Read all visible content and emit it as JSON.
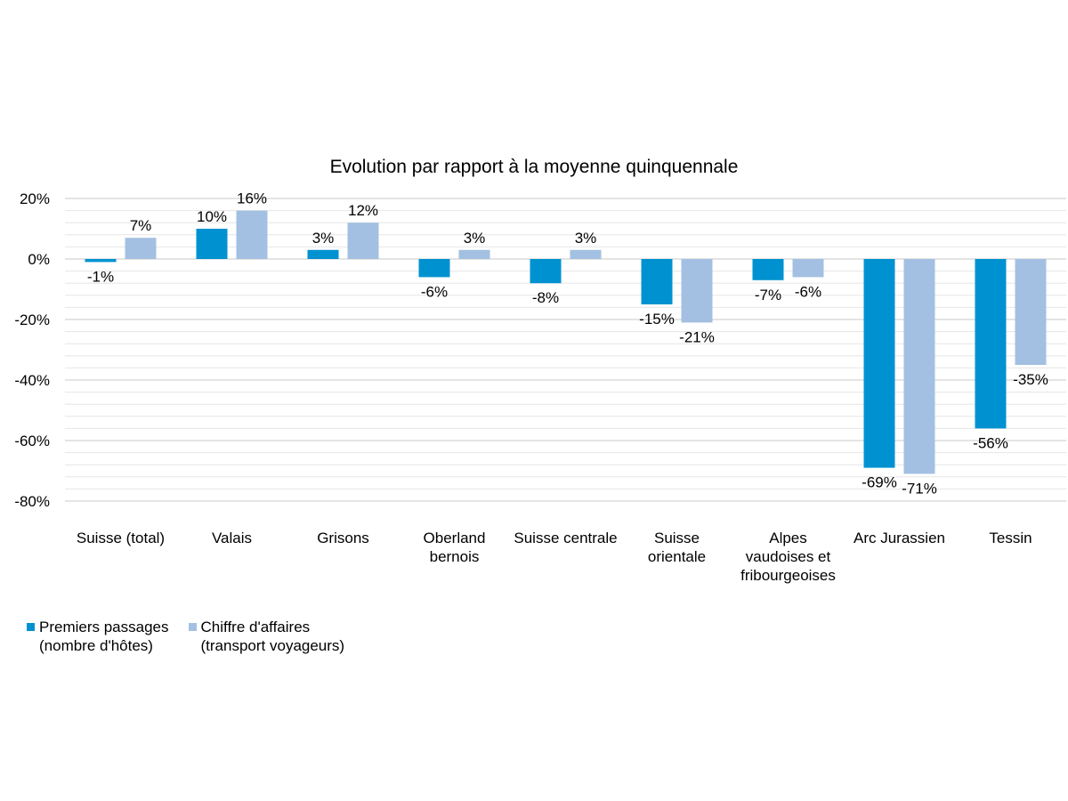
{
  "chart_data": {
    "type": "bar",
    "title": "Evolution par rapport à la moyenne quinquennale",
    "categories": [
      "Suisse (total)",
      "Valais",
      "Grisons",
      "Oberland\nbernois",
      "Suisse centrale",
      "Suisse\norientale",
      "Alpes\nvaudoises et\nfribourgeoises",
      "Arc Jurassien",
      "Tessin"
    ],
    "series": [
      {
        "name": "Premiers passages\n(nombre d'hôtes)",
        "color": "#0092d0",
        "values": [
          -1,
          10,
          3,
          -6,
          -8,
          -15,
          -7,
          -69,
          -56
        ],
        "labels": [
          "-1%",
          "10%",
          "3%",
          "-6%",
          "-8%",
          "-15%",
          "-7%",
          "-69%",
          "-56%"
        ]
      },
      {
        "name": "Chiffre d'affaires\n(transport voyageurs)",
        "color": "#a3c0e2",
        "values": [
          7,
          16,
          12,
          3,
          3,
          -21,
          -6,
          -71,
          -35
        ],
        "labels": [
          "7%",
          "16%",
          "12%",
          "3%",
          "3%",
          "-21%",
          "-6%",
          "-71%",
          "-35%"
        ]
      }
    ],
    "ylim": [
      -80,
      20
    ],
    "yticks": [
      20,
      0,
      -20,
      -40,
      -60,
      -80
    ],
    "ytick_labels": [
      "20%",
      "0%",
      "-20%",
      "-40%",
      "-60%",
      "-80%"
    ],
    "grid": true,
    "legend_position": "bottom-left"
  }
}
